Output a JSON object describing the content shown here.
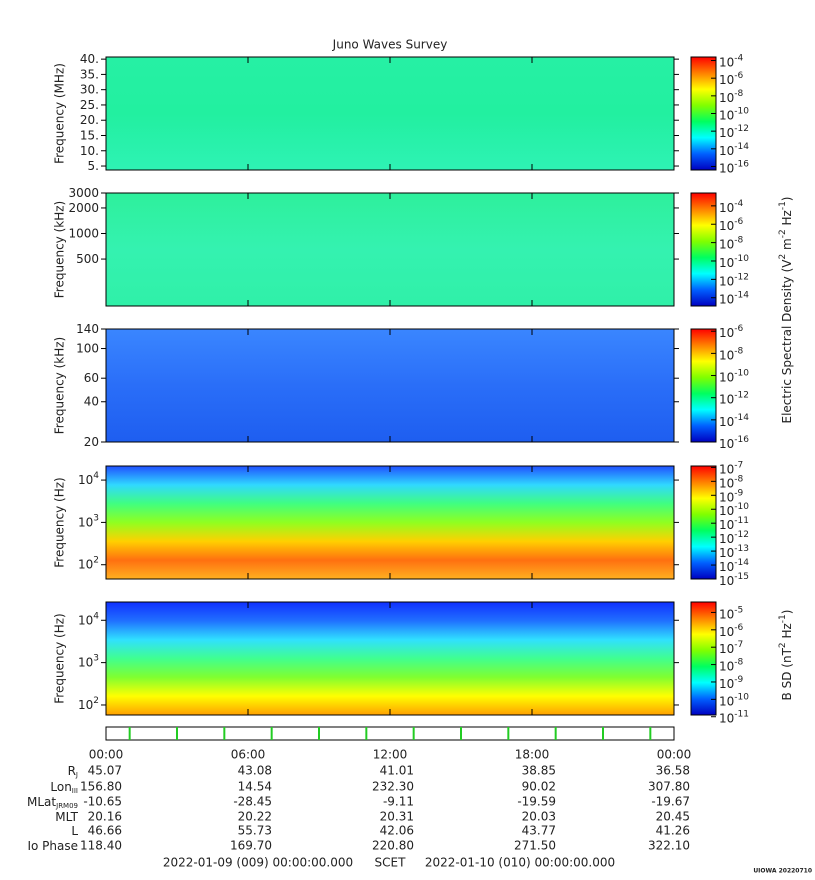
{
  "title": "Juno Waves Survey",
  "colorbar_colors": [
    "#ff0000",
    "#ff8000",
    "#ffff00",
    "#80ff00",
    "#00ff60",
    "#00ffff",
    "#0060ff",
    "#0000c0"
  ],
  "panels": [
    {
      "ylabel": "Frequency (MHz)",
      "scale": "linear",
      "ylim": [
        3.7,
        40.7
      ],
      "yticks": [
        {
          "value": 40,
          "label": "40."
        },
        {
          "value": 35,
          "label": "35."
        },
        {
          "value": 30,
          "label": "30."
        },
        {
          "value": 25,
          "label": "25."
        },
        {
          "value": 20,
          "label": "20."
        },
        {
          "value": 15,
          "label": "15."
        },
        {
          "value": 10,
          "label": "10."
        },
        {
          "value": 5,
          "label": "5."
        }
      ],
      "colors": [
        "#26f0a4",
        "#22f0a0",
        "#2ef2b4"
      ],
      "clim": [
        -16.4,
        -3.6
      ],
      "cticks": [
        {
          "value": -4,
          "label": "10",
          "sup": "-4"
        },
        {
          "value": -6,
          "label": "10",
          "sup": "-6"
        },
        {
          "value": -8,
          "label": "10",
          "sup": "-8"
        },
        {
          "value": -10,
          "label": "10",
          "sup": "-10"
        },
        {
          "value": -12,
          "label": "10",
          "sup": "-12"
        },
        {
          "value": -14,
          "label": "10",
          "sup": "-14"
        },
        {
          "value": -16,
          "label": "10",
          "sup": "-16"
        }
      ]
    },
    {
      "ylabel": "Frequency (kHz)",
      "scale": "log",
      "ylim": [
        140,
        3000
      ],
      "yticks": [
        3000,
        2000,
        1000,
        500
      ],
      "colors": [
        "#2ef09c",
        "#34f2b0",
        "#30f0a8"
      ],
      "clim": [
        -14.9,
        -2.6
      ],
      "cticks": [
        {
          "value": -4,
          "label": "10",
          "sup": "-4"
        },
        {
          "value": -6,
          "label": "10",
          "sup": "-6"
        },
        {
          "value": -8,
          "label": "10",
          "sup": "-8"
        },
        {
          "value": -10,
          "label": "10",
          "sup": "-10"
        },
        {
          "value": -12,
          "label": "10",
          "sup": "-12"
        },
        {
          "value": -14,
          "label": "10",
          "sup": "-14"
        }
      ]
    },
    {
      "ylabel": "Frequency (kHz)",
      "scale": "log",
      "ylim": [
        20,
        140
      ],
      "yticks": [
        140,
        100,
        60,
        40,
        20
      ],
      "colors": [
        "#3a86ff",
        "#2a6ef8",
        "#1e5ef0"
      ],
      "clim": [
        -16,
        -5.8
      ],
      "cticks": [
        {
          "value": -6,
          "label": "10",
          "sup": "-6"
        },
        {
          "value": -8,
          "label": "10",
          "sup": "-8"
        },
        {
          "value": -10,
          "label": "10",
          "sup": "-10"
        },
        {
          "value": -12,
          "label": "10",
          "sup": "-12"
        },
        {
          "value": -14,
          "label": "10",
          "sup": "-14"
        },
        {
          "value": -16,
          "label": "10",
          "sup": "-16"
        }
      ]
    },
    {
      "ylabel": "Frequency (Hz)",
      "scale": "log",
      "ylim": [
        46,
        21500
      ],
      "yticks": [
        {
          "value": 10000,
          "label": "10",
          "sup": "4"
        },
        {
          "value": 1000,
          "label": "10",
          "sup": "3"
        },
        {
          "value": 100,
          "label": "10",
          "sup": "2"
        }
      ],
      "colors": [
        "#2050ff",
        "#30d8ff",
        "#40ff80",
        "#90ff20",
        "#ffd000",
        "#ff7010",
        "#ffb020"
      ],
      "clim": [
        -15,
        -6.9
      ],
      "cticks": [
        {
          "value": -7,
          "label": "10",
          "sup": "-7"
        },
        {
          "value": -8,
          "label": "10",
          "sup": "-8"
        },
        {
          "value": -9,
          "label": "10",
          "sup": "-9"
        },
        {
          "value": -10,
          "label": "10",
          "sup": "-10"
        },
        {
          "value": -11,
          "label": "10",
          "sup": "-11"
        },
        {
          "value": -12,
          "label": "10",
          "sup": "-12"
        },
        {
          "value": -13,
          "label": "10",
          "sup": "-13"
        },
        {
          "value": -14,
          "label": "10",
          "sup": "-14"
        },
        {
          "value": -15,
          "label": "10",
          "sup": "-15"
        }
      ]
    },
    {
      "ylabel": "Frequency (Hz)",
      "scale": "log",
      "ylim": [
        58,
        27000
      ],
      "yticks": [
        {
          "value": 10000,
          "label": "10",
          "sup": "4"
        },
        {
          "value": 1000,
          "label": "10",
          "sup": "3"
        },
        {
          "value": 100,
          "label": "10",
          "sup": "2"
        }
      ],
      "colors": [
        "#1030ff",
        "#2070ff",
        "#30e0ff",
        "#40ff90",
        "#80ff30",
        "#ffff00",
        "#ffa000"
      ],
      "clim": [
        -10.9,
        -4.4
      ],
      "cticks": [
        {
          "value": -5,
          "label": "10",
          "sup": "-5"
        },
        {
          "value": -6,
          "label": "10",
          "sup": "-6"
        },
        {
          "value": -7,
          "label": "10",
          "sup": "-7"
        },
        {
          "value": -8,
          "label": "10",
          "sup": "-8"
        },
        {
          "value": -9,
          "label": "10",
          "sup": "-9"
        },
        {
          "value": -10,
          "label": "10",
          "sup": "-10"
        },
        {
          "value": -11,
          "label": "10",
          "sup": "-11"
        }
      ]
    }
  ],
  "electric_label": [
    {
      "text": "Electric Spectral Density (V"
    },
    {
      "text": "2",
      "sup": true
    },
    {
      "text": " m"
    },
    {
      "text": "-2",
      "sup": true
    },
    {
      "text": " Hz"
    },
    {
      "text": "-1",
      "sup": true
    },
    {
      "text": ")"
    }
  ],
  "magnetic_label": [
    {
      "text": "B SD (nT"
    },
    {
      "text": "2",
      "sup": true
    },
    {
      "text": " Hz"
    },
    {
      "text": "-1",
      "sup": true
    },
    {
      "text": ")"
    }
  ],
  "xlim": [
    0,
    24
  ],
  "xticks": [
    {
      "value": 0,
      "label": "00:00"
    },
    {
      "value": 6,
      "label": "06:00"
    },
    {
      "value": 12,
      "label": "12:00"
    },
    {
      "value": 18,
      "label": "18:00"
    },
    {
      "value": 24,
      "label": "00:00"
    }
  ],
  "orbit_marks": [
    1,
    3,
    5,
    7,
    9,
    11,
    13,
    15,
    17,
    19,
    21,
    23
  ],
  "orbit_color": "#22cc22",
  "rows": [
    {
      "label": "R",
      "sub": "J",
      "values": [
        "45.07",
        "43.08",
        "41.01",
        "38.85",
        "36.58"
      ]
    },
    {
      "label": "Lon",
      "sub": "III",
      "values": [
        "156.80",
        "14.54",
        "232.30",
        "90.02",
        "307.80"
      ]
    },
    {
      "label": "MLat",
      "sub": "JRM09",
      "values": [
        "-10.65",
        "-28.45",
        "-9.11",
        "-19.59",
        "-19.67"
      ]
    },
    {
      "label": "MLT",
      "values": [
        "20.16",
        "20.22",
        "20.31",
        "20.03",
        "20.45"
      ]
    },
    {
      "label": "L",
      "values": [
        "46.66",
        "55.73",
        "42.06",
        "43.77",
        "41.26"
      ]
    },
    {
      "label": "Io Phase",
      "values": [
        "118.40",
        "169.70",
        "220.80",
        "271.50",
        "322.10"
      ]
    }
  ],
  "footer": {
    "start": "2022-01-09 (009) 00:00:00.000",
    "center": "SCET",
    "end": "2022-01-10 (010) 00:00:00.000",
    "credit": "UIOWA 20220710"
  }
}
